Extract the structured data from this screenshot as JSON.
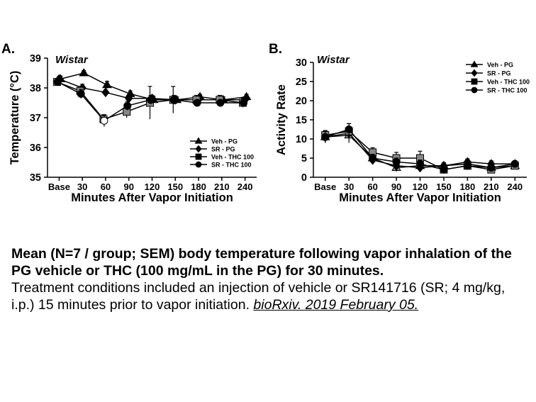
{
  "chart_data": [
    {
      "type": "line",
      "panel_label": "A.",
      "title": "Wistar",
      "xlabel": "Minutes After Vapor Initiation",
      "ylabel": "Temperature (°C)",
      "categories": [
        "Base",
        "30",
        "60",
        "90",
        "120",
        "150",
        "180",
        "210",
        "240"
      ],
      "ylim": [
        35,
        39
      ],
      "yticks": [
        "35",
        "36",
        "37",
        "38",
        "39"
      ],
      "legend_position": "lower-right",
      "series": [
        {
          "name": "Veh - PG",
          "marker": "triangle",
          "fill": "#000000",
          "values": [
            38.3,
            38.5,
            38.1,
            37.8,
            37.6,
            37.6,
            37.7,
            37.6,
            37.7
          ],
          "err": [
            0.1,
            0.08,
            0.12,
            0.1,
            0.12,
            0.1,
            0.08,
            0.1,
            0.08
          ]
        },
        {
          "name": "SR - PG",
          "marker": "diamond",
          "fill": "#000000",
          "values": [
            38.3,
            38.0,
            37.85,
            37.65,
            37.65,
            37.6,
            37.6,
            37.6,
            37.6
          ],
          "err": [
            0.08,
            0.12,
            0.08,
            0.1,
            0.1,
            0.1,
            0.1,
            0.1,
            0.1
          ]
        },
        {
          "name": "Veh - THC 100",
          "marker": "square",
          "fill": "#888888",
          "values": [
            38.2,
            37.9,
            36.95,
            37.2,
            37.5,
            37.6,
            37.6,
            37.6,
            37.5
          ],
          "err": [
            0.1,
            0.15,
            0.15,
            0.2,
            0.55,
            0.45,
            0.15,
            0.15,
            0.15
          ]
        },
        {
          "name": "SR - THC 100",
          "marker": "circle",
          "fill": "#000000",
          "values": [
            38.2,
            37.8,
            36.9,
            37.4,
            37.6,
            37.6,
            37.5,
            37.5,
            37.5
          ],
          "err": [
            0.1,
            0.15,
            0.2,
            0.15,
            0.15,
            0.15,
            0.1,
            0.1,
            0.1
          ]
        }
      ]
    },
    {
      "type": "line",
      "panel_label": "B.",
      "title": "Wistar",
      "xlabel": "Minutes After Vapor Initiation",
      "ylabel": "Activity Rate",
      "categories": [
        "Base",
        "30",
        "60",
        "90",
        "120",
        "150",
        "180",
        "210",
        "240"
      ],
      "ylim": [
        0,
        30
      ],
      "yticks": [
        "0",
        "5",
        "10",
        "15",
        "20",
        "25",
        "30"
      ],
      "legend_position": "top-right",
      "series": [
        {
          "name": "Veh - PG",
          "marker": "triangle",
          "fill": "#888888",
          "values": [
            10.5,
            11.0,
            5.0,
            2.5,
            3.0,
            3.0,
            3.5,
            2.5,
            3.0
          ],
          "err": [
            1.5,
            2.0,
            1.0,
            1.0,
            1.0,
            0.8,
            0.8,
            0.8,
            0.8
          ]
        },
        {
          "name": "SR - PG",
          "marker": "diamond",
          "fill": "#000000",
          "values": [
            10.5,
            11.5,
            4.5,
            3.0,
            2.5,
            3.0,
            4.0,
            3.5,
            3.5
          ],
          "err": [
            1.5,
            1.5,
            1.0,
            1.0,
            1.0,
            0.8,
            0.8,
            0.8,
            0.8
          ]
        },
        {
          "name": "Veh - THC 100",
          "marker": "square",
          "fill": "#888888",
          "values": [
            11.0,
            12.0,
            6.5,
            5.0,
            5.0,
            2.0,
            3.0,
            2.0,
            3.0
          ],
          "err": [
            1.2,
            2.0,
            1.2,
            1.5,
            1.8,
            0.8,
            0.8,
            0.8,
            0.8
          ]
        },
        {
          "name": "SR - THC 100",
          "marker": "circle",
          "fill": "#000000",
          "values": [
            10.5,
            12.5,
            5.0,
            4.0,
            3.5,
            2.0,
            3.0,
            2.5,
            3.5
          ],
          "err": [
            1.5,
            1.5,
            1.0,
            1.0,
            1.0,
            0.8,
            0.8,
            0.8,
            0.8
          ]
        }
      ]
    }
  ],
  "caption": {
    "bold": "Mean (N=7 / group; SEM) body temperature following vapor inhalation of the PG vehicle or THC (100 mg/mL in the PG) for 30 minutes.",
    "body": "Treatment conditions included an injection of vehicle or SR141716 (SR; 4 mg/kg, i.p.) 15 minutes prior to vapor initiation.",
    "source": "bioRxiv. 2019 February 05."
  }
}
